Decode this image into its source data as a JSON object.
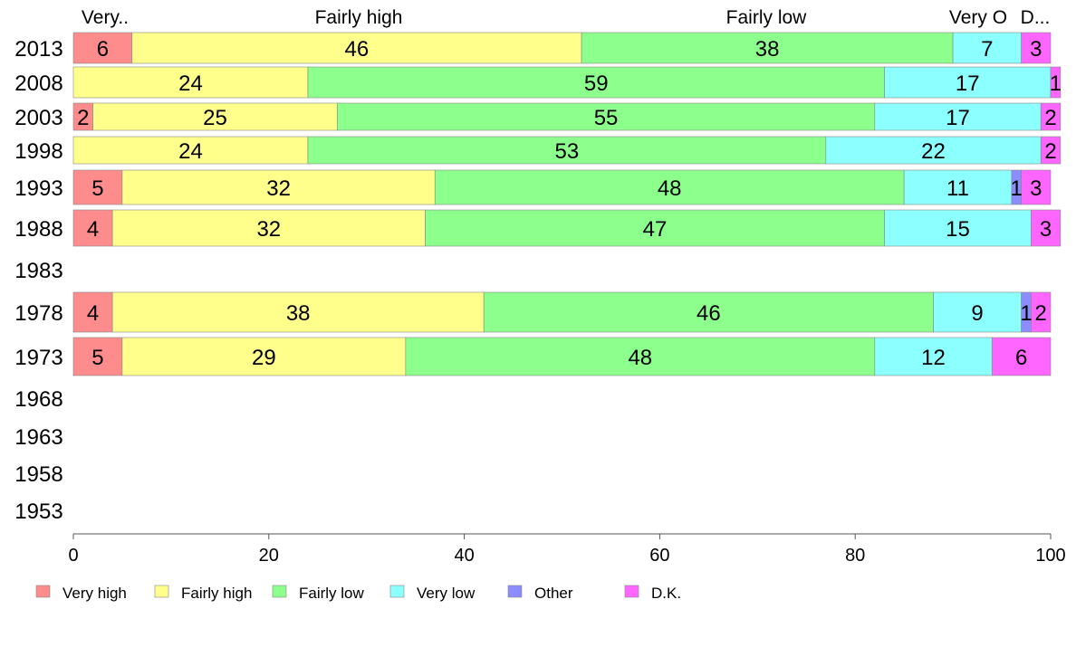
{
  "chart_data": {
    "type": "bar",
    "orientation": "horizontal",
    "stacked": true,
    "categories": [
      "2013",
      "2008",
      "2003",
      "1998",
      "1993",
      "1988",
      "1983",
      "1978",
      "1973",
      "1968",
      "1963",
      "1958",
      "1953"
    ],
    "series": [
      {
        "name": "Very high",
        "color": "#ff8c8c",
        "values": [
          6,
          null,
          2,
          null,
          5,
          4,
          null,
          4,
          5,
          null,
          null,
          null,
          null
        ]
      },
      {
        "name": "Fairly high",
        "color": "#ffff8c",
        "values": [
          46,
          24,
          25,
          24,
          32,
          32,
          null,
          38,
          29,
          null,
          null,
          null,
          null
        ]
      },
      {
        "name": "Fairly low",
        "color": "#8cff8c",
        "values": [
          38,
          59,
          55,
          53,
          48,
          47,
          null,
          46,
          48,
          null,
          null,
          null,
          null
        ]
      },
      {
        "name": "Very low",
        "color": "#8cffff",
        "values": [
          7,
          17,
          17,
          22,
          11,
          15,
          null,
          9,
          12,
          null,
          null,
          null,
          null
        ]
      },
      {
        "name": "Other",
        "color": "#8c8cff",
        "values": [
          null,
          null,
          null,
          null,
          1,
          null,
          null,
          1,
          null,
          null,
          null,
          null,
          null
        ]
      },
      {
        "name": "D.K.",
        "color": "#ff66ff",
        "values": [
          3,
          1,
          2,
          2,
          3,
          3,
          null,
          2,
          6,
          null,
          null,
          null,
          null
        ]
      }
    ],
    "top_labels": [
      "Very..",
      "Fairly high",
      "Fairly low",
      "Very O",
      "D..."
    ],
    "xlim": [
      0,
      100
    ],
    "xticks": [
      0,
      20,
      40,
      60,
      80,
      100
    ],
    "grid": false,
    "legend_position": "bottom-left"
  }
}
